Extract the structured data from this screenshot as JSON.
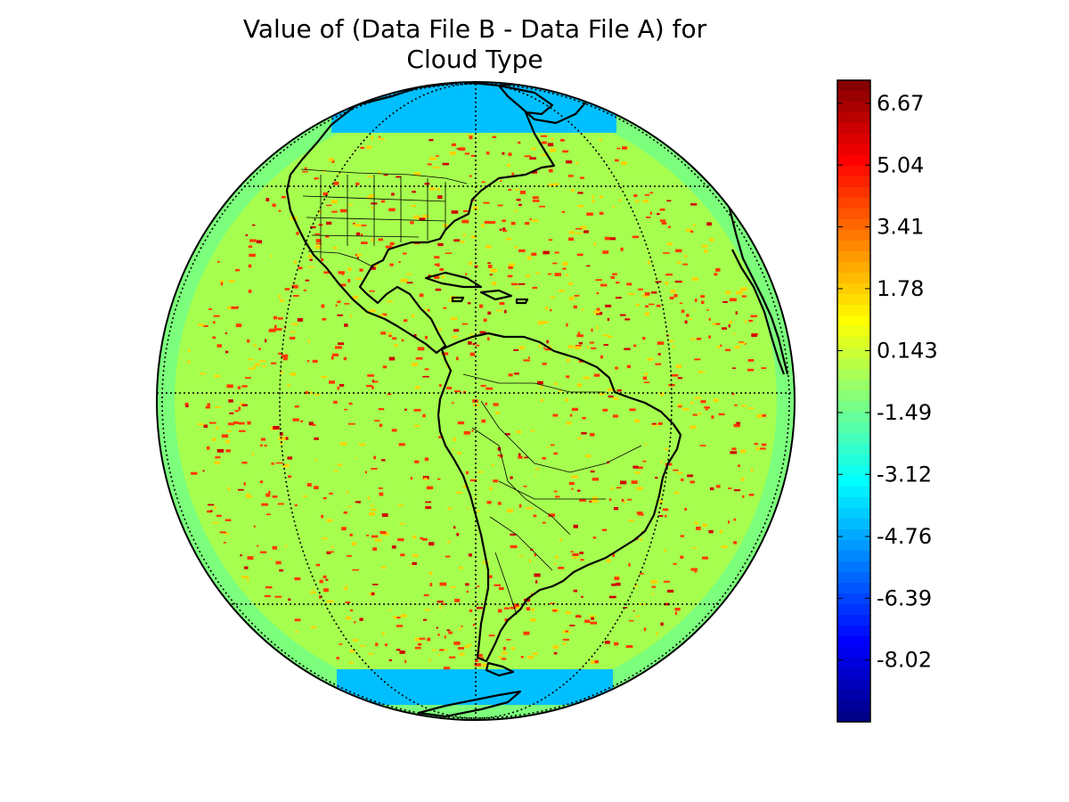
{
  "title": {
    "line1": "Value of (Data File B - Data File A) for",
    "line2": "Cloud Type"
  },
  "colorbar": {
    "colormap": "jet",
    "min": -9.65,
    "max": 7.28,
    "ticks": [
      {
        "value": 6.67,
        "label": "6.67"
      },
      {
        "value": 5.04,
        "label": "5.04"
      },
      {
        "value": 3.41,
        "label": "3.41"
      },
      {
        "value": 1.78,
        "label": "1.78"
      },
      {
        "value": 0.143,
        "label": "0.143"
      },
      {
        "value": -1.49,
        "label": "-1.49"
      },
      {
        "value": -3.12,
        "label": "-3.12"
      },
      {
        "value": -4.76,
        "label": "-4.76"
      },
      {
        "value": -6.39,
        "label": "-6.39"
      },
      {
        "value": -8.02,
        "label": "-8.02"
      }
    ]
  },
  "map": {
    "projection": "orthographic",
    "central_longitude": -75,
    "central_latitude": 0,
    "background_value": 0.143,
    "rim_value": -1.49,
    "polar_band_value": -3.6,
    "colors": {
      "background": "#a6ff4f",
      "rim": "#7cff7c",
      "polar_band": "#00bfff",
      "positive_speckle": "#ff3a00",
      "strong_speckle": "#d00000",
      "weak_speckle": "#ffd200",
      "coastline": "#000000",
      "graticule": "#000000"
    }
  }
}
